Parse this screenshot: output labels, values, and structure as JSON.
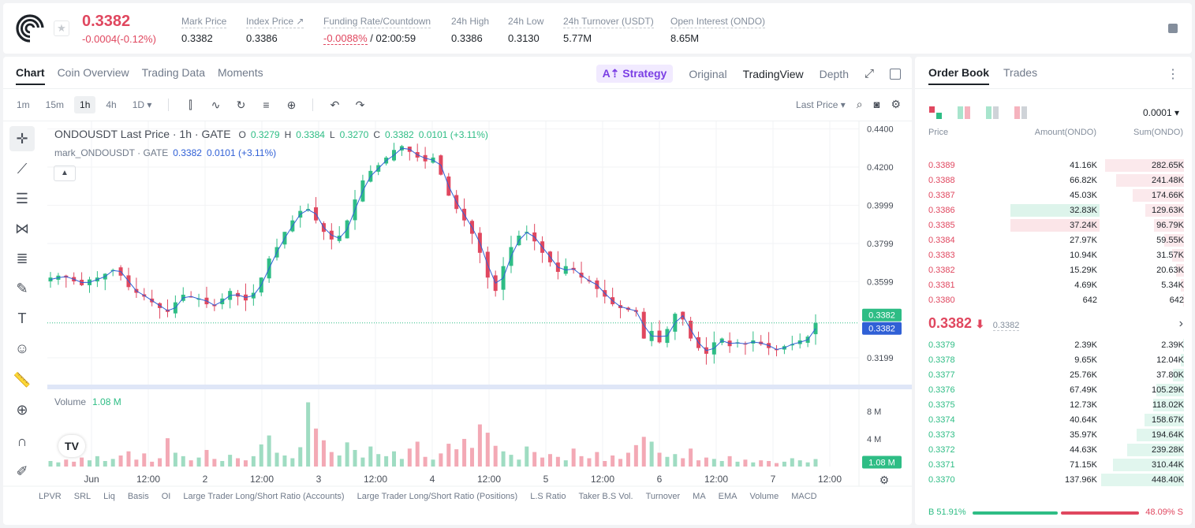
{
  "header": {
    "price": "0.3382",
    "change": "-0.0004(-0.12%)",
    "stats": [
      {
        "label": "Mark Price",
        "value": "0.3382"
      },
      {
        "label": "Index Price ↗",
        "value": "0.3386"
      },
      {
        "label": "Funding Rate/Countdown",
        "value_red": "-0.0088%",
        "value": " / 02:00:59"
      },
      {
        "label": "24h High",
        "value": "0.3386"
      },
      {
        "label": "24h Low",
        "value": "0.3130"
      },
      {
        "label": "24h Turnover (USDT)",
        "value": "5.77M"
      },
      {
        "label": "Open Interest (ONDO)",
        "value": "8.65M"
      }
    ]
  },
  "chart_tabs": [
    "Chart",
    "Coin Overview",
    "Trading Data",
    "Moments"
  ],
  "view_tabs": {
    "strategy": "A⇡ Strategy",
    "original": "Original",
    "tradingview": "TradingView",
    "depth": "Depth"
  },
  "timeframes": [
    "1m",
    "15m",
    "1h",
    "4h",
    "1D ▾"
  ],
  "price_type": "Last Price ▾",
  "legend": {
    "title": "ONDOUSDT Last Price · 1h · GATE",
    "o_label": "O",
    "o": "0.3279",
    "h_label": "H",
    "h": "0.3384",
    "l_label": "L",
    "l": "0.3270",
    "c_label": "C",
    "c": "0.3382",
    "chg": "0.0101 (+3.11%)",
    "mark_title": "mark_ONDOUSDT · GATE",
    "mark_value": "0.3382",
    "mark_chg": "0.0101 (+3.11%)"
  },
  "volume_legend": {
    "label": "Volume",
    "value": "1.08 M"
  },
  "indicators": [
    "LPVR",
    "SRL",
    "Liq",
    "Basis",
    "OI",
    "Large Trader Long/Short Ratio (Accounts)",
    "Large Trader Long/Short Ratio (Positions)",
    "L.S Ratio",
    "Taker B.S Vol.",
    "Turnover",
    "MA",
    "EMA",
    "Volume",
    "MACD"
  ],
  "chart_data": {
    "type": "candlestick",
    "title": "ONDOUSDT Last Price · 1h · GATE",
    "y_ticks": [
      "0.4400",
      "0.4200",
      "0.3999",
      "0.3799",
      "0.3599",
      "0.3199"
    ],
    "y_range": [
      0.305,
      0.444
    ],
    "volume_ticks": [
      "8 M",
      "4 M"
    ],
    "volume_range": [
      0,
      10.5
    ],
    "x_ticks": [
      "Jun",
      "12:00",
      "2",
      "12:00",
      "3",
      "12:00",
      "4",
      "12:00",
      "5",
      "12:00",
      "6",
      "12:00",
      "7",
      "12:00"
    ],
    "last_price_tag": "0.3382",
    "mark_price_tag": "0.3382",
    "last_volume_tag": "1.08 M",
    "close_path": [
      0.362,
      0.363,
      0.362,
      0.36,
      0.358,
      0.361,
      0.362,
      0.364,
      0.366,
      0.363,
      0.357,
      0.354,
      0.352,
      0.349,
      0.346,
      0.344,
      0.349,
      0.353,
      0.352,
      0.351,
      0.348,
      0.347,
      0.351,
      0.355,
      0.352,
      0.35,
      0.354,
      0.362,
      0.372,
      0.378,
      0.386,
      0.392,
      0.397,
      0.398,
      0.392,
      0.386,
      0.382,
      0.384,
      0.392,
      0.403,
      0.413,
      0.418,
      0.421,
      0.425,
      0.429,
      0.431,
      0.428,
      0.425,
      0.423,
      0.425,
      0.416,
      0.405,
      0.398,
      0.392,
      0.385,
      0.375,
      0.362,
      0.355,
      0.368,
      0.378,
      0.384,
      0.386,
      0.381,
      0.375,
      0.37,
      0.365,
      0.368,
      0.366,
      0.362,
      0.36,
      0.356,
      0.352,
      0.348,
      0.346,
      0.345,
      0.344,
      0.33,
      0.334,
      0.328,
      0.335,
      0.343,
      0.34,
      0.33,
      0.325,
      0.322,
      0.328,
      0.33,
      0.326,
      0.328,
      0.327,
      0.329,
      0.327,
      0.325,
      0.324,
      0.326,
      0.327,
      0.329,
      0.331,
      0.3382
    ],
    "volumes": [
      0.8,
      0.6,
      1.0,
      0.7,
      1.3,
      0.9,
      1.5,
      0.8,
      1.1,
      1.6,
      2.2,
      1.0,
      1.9,
      0.7,
      1.2,
      4.1,
      2.0,
      1.5,
      0.9,
      1.3,
      2.4,
      1.1,
      0.8,
      1.7,
      1.2,
      0.9,
      1.5,
      3.2,
      4.5,
      2.0,
      1.6,
      1.2,
      2.8,
      9.3,
      5.5,
      3.8,
      2.1,
      1.6,
      3.5,
      2.4,
      1.3,
      2.9,
      1.8,
      1.5,
      2.2,
      1.1,
      2.6,
      3.6,
      1.4,
      1.0,
      1.9,
      3.3,
      2.5,
      4.0,
      2.7,
      6.1,
      4.9,
      3.0,
      2.2,
      1.7,
      1.0,
      2.9,
      2.1,
      1.3,
      1.8,
      1.4,
      0.9,
      2.6,
      1.5,
      1.2,
      2.1,
      0.8,
      1.6,
      1.1,
      2.0,
      3.1,
      4.3,
      3.6,
      2.0,
      1.4,
      1.8,
      1.2,
      2.6,
      0.9,
      1.3,
      1.1,
      0.8,
      1.5,
      0.7,
      1.0,
      0.6,
      0.9,
      0.8,
      0.5,
      0.7,
      1.2,
      0.9,
      0.6,
      1.08
    ]
  },
  "orderbook": {
    "tabs": [
      "Order Book",
      "Trades"
    ],
    "tick": "0.0001 ▾",
    "headers": {
      "price": "Price",
      "amount": "Amount(ONDO)",
      "sum": "Sum(ONDO)"
    },
    "asks": [
      {
        "price": "0.3389",
        "amount": "41.16K",
        "sum": "282.65K",
        "depth": 0.95
      },
      {
        "price": "0.3388",
        "amount": "66.82K",
        "sum": "241.48K",
        "depth": 0.82
      },
      {
        "price": "0.3387",
        "amount": "45.03K",
        "sum": "174.66K",
        "depth": 0.62
      },
      {
        "price": "0.3386",
        "amount": "32.83K",
        "sum": "129.63K",
        "depth": 0.47
      },
      {
        "price": "0.3385",
        "amount": "37.24K",
        "sum": "96.79K",
        "depth": 0.36
      },
      {
        "price": "0.3384",
        "amount": "27.97K",
        "sum": "59.55K",
        "depth": 0.24
      },
      {
        "price": "0.3383",
        "amount": "10.94K",
        "sum": "31.57K",
        "depth": 0.14
      },
      {
        "price": "0.3382",
        "amount": "15.29K",
        "sum": "20.63K",
        "depth": 0.1
      },
      {
        "price": "0.3381",
        "amount": "4.69K",
        "sum": "5.34K",
        "depth": 0.04
      },
      {
        "price": "0.3380",
        "amount": "642",
        "sum": "642",
        "depth": 0.01
      }
    ],
    "mid": {
      "price": "0.3382",
      "arrow": "⬇",
      "mark": "0.3382"
    },
    "bids": [
      {
        "price": "0.3379",
        "amount": "2.39K",
        "sum": "2.39K",
        "depth": 0.01
      },
      {
        "price": "0.3378",
        "amount": "9.65K",
        "sum": "12.04K",
        "depth": 0.04
      },
      {
        "price": "0.3377",
        "amount": "25.76K",
        "sum": "37.80K",
        "depth": 0.13
      },
      {
        "price": "0.3376",
        "amount": "67.49K",
        "sum": "105.29K",
        "depth": 0.33
      },
      {
        "price": "0.3375",
        "amount": "12.73K",
        "sum": "118.02K",
        "depth": 0.37
      },
      {
        "price": "0.3374",
        "amount": "40.64K",
        "sum": "158.67K",
        "depth": 0.48
      },
      {
        "price": "0.3373",
        "amount": "35.97K",
        "sum": "194.64K",
        "depth": 0.57
      },
      {
        "price": "0.3372",
        "amount": "44.63K",
        "sum": "239.28K",
        "depth": 0.69
      },
      {
        "price": "0.3371",
        "amount": "71.15K",
        "sum": "310.44K",
        "depth": 0.86
      },
      {
        "price": "0.3370",
        "amount": "137.96K",
        "sum": "448.40K",
        "depth": 1.0
      }
    ],
    "buy_ratio": "B 51.91%",
    "sell_ratio": "48.09% S",
    "buy_fraction": 0.5191
  },
  "colors": {
    "up": "#2ebd85",
    "down": "#e0475f",
    "mark": "#3060d6"
  }
}
